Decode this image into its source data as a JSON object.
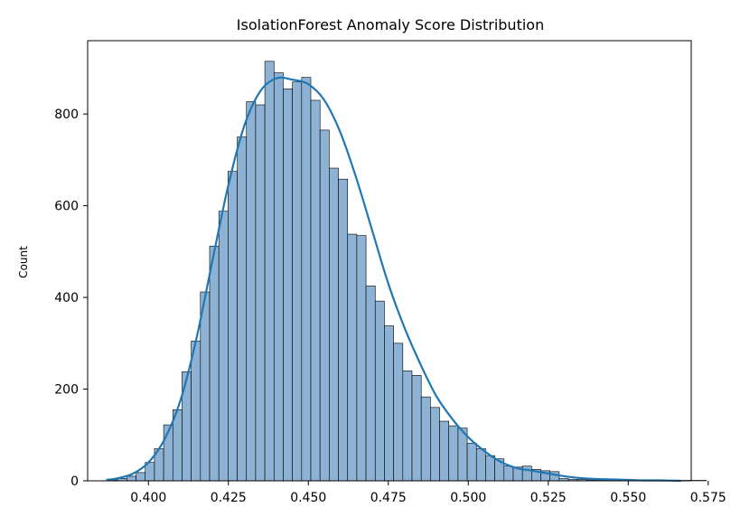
{
  "chart_data": {
    "type": "bar",
    "title": "IsolationForest Anomaly Score Distribution",
    "xlabel": "",
    "ylabel": "Count",
    "xlim": [
      0.381,
      0.5697
    ],
    "ylim": [
      0,
      960
    ],
    "grid": false,
    "x_ticks": [
      0.4,
      0.425,
      0.45,
      0.475,
      0.5,
      0.525,
      0.55,
      0.575
    ],
    "x_tick_labels": [
      "0.400",
      "0.425",
      "0.450",
      "0.475",
      "0.500",
      "0.525",
      "0.550",
      "0.575"
    ],
    "y_ticks": [
      0,
      200,
      400,
      600,
      800
    ],
    "y_tick_labels": [
      "0",
      "200",
      "400",
      "600",
      "800"
    ],
    "bin_start": 0.3875,
    "bin_width": 0.002876,
    "values": [
      2,
      5,
      10,
      18,
      40,
      70,
      122,
      155,
      238,
      305,
      412,
      512,
      588,
      675,
      750,
      827,
      820,
      915,
      890,
      855,
      870,
      880,
      830,
      765,
      682,
      658,
      538,
      535,
      425,
      392,
      338,
      300,
      240,
      230,
      183,
      160,
      130,
      120,
      115,
      82,
      70,
      55,
      48,
      32,
      30,
      32,
      25,
      22,
      20,
      5,
      3,
      3,
      2,
      2,
      1,
      1,
      1,
      1,
      1,
      1,
      1,
      1,
      1,
      1,
      1
    ],
    "kde": {
      "x": [
        0.3868,
        0.39,
        0.395,
        0.4,
        0.405,
        0.41,
        0.415,
        0.42,
        0.425,
        0.43,
        0.435,
        0.44,
        0.445,
        0.45,
        0.455,
        0.46,
        0.465,
        0.47,
        0.475,
        0.48,
        0.485,
        0.49,
        0.495,
        0.5,
        0.505,
        0.51,
        0.515,
        0.52,
        0.525,
        0.53,
        0.535,
        0.54,
        0.545,
        0.55,
        0.555,
        0.56,
        0.5665
      ],
      "y": [
        2,
        5,
        15,
        40,
        90,
        175,
        310,
        480,
        645,
        775,
        850,
        878,
        875,
        865,
        830,
        760,
        660,
        545,
        430,
        335,
        255,
        185,
        135,
        95,
        65,
        42,
        28,
        22,
        16,
        10,
        6,
        4,
        3,
        2,
        1,
        1,
        0
      ]
    },
    "colors": {
      "bar_fill": "#8db2d3",
      "bar_edge": "#000000",
      "kde_line": "#1f77b4"
    }
  }
}
